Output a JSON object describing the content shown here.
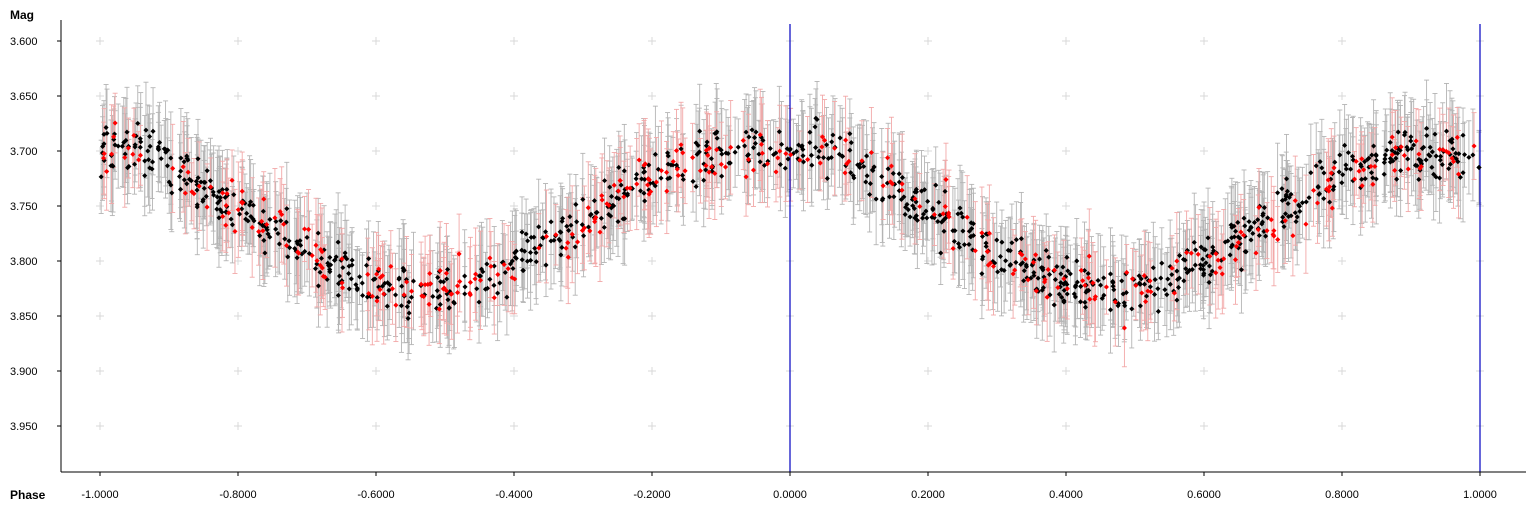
{
  "chart_data": {
    "type": "scatter",
    "xlabel": "Phase",
    "ylabel": "Mag",
    "xlim": [
      -1.0,
      1.0
    ],
    "ylim": [
      3.59,
      3.99
    ],
    "y_inverted": true,
    "grid": "light-gray plus markers at tick intersections",
    "x_ticks": [
      "-1.0000",
      "-0.8000",
      "-0.6000",
      "-0.4000",
      "-0.2000",
      "0.0000",
      "0.2000",
      "0.4000",
      "0.6000",
      "0.8000",
      "1.0000"
    ],
    "x_tick_values": [
      -1.0,
      -0.8,
      -0.6,
      -0.4,
      -0.2,
      0.0,
      0.2,
      0.4,
      0.6,
      0.8,
      1.0
    ],
    "y_ticks": [
      "3.600",
      "3.650",
      "3.700",
      "3.750",
      "3.800",
      "3.850",
      "3.900",
      "3.950"
    ],
    "y_tick_values": [
      3.6,
      3.65,
      3.7,
      3.75,
      3.8,
      3.85,
      3.9,
      3.95
    ],
    "phase_markers": [
      0.0,
      1.0
    ],
    "colors": {
      "series_black": "#000000",
      "series_red": "#ff0000",
      "errorbar_black": "#b4b4b4",
      "errorbar_red": "#f2a8a8",
      "marker_line": "#0000c0",
      "grid_plus": "#d8d8d8",
      "axis": "#000000"
    },
    "series": [
      {
        "color": "black",
        "points_per_phase_bin": "many individual observations; values below are representative samples read from the plot",
        "x": [
          -1.0,
          -0.98,
          -0.96,
          -0.94,
          -0.92,
          -0.9,
          -0.88,
          -0.86,
          -0.84,
          -0.82,
          -0.8,
          -0.78,
          -0.76,
          -0.74,
          -0.72,
          -0.7,
          -0.68,
          -0.66,
          -0.64,
          -0.62,
          -0.6,
          -0.58,
          -0.56,
          -0.54,
          -0.52,
          -0.5,
          -0.48,
          -0.46,
          -0.44,
          -0.42,
          -0.4,
          -0.38,
          -0.36,
          -0.34,
          -0.32,
          -0.3,
          -0.28,
          -0.26,
          -0.24,
          -0.22,
          -0.2,
          -0.18,
          -0.16,
          -0.14,
          -0.12,
          -0.1,
          -0.08,
          -0.06,
          -0.04,
          -0.02,
          0.0,
          0.02,
          0.04,
          0.06,
          0.08,
          0.1,
          0.12,
          0.14,
          0.16,
          0.18,
          0.2,
          0.22,
          0.24,
          0.26,
          0.28,
          0.3,
          0.32,
          0.34,
          0.36,
          0.38,
          0.4,
          0.42,
          0.44,
          0.46,
          0.48,
          0.5,
          0.52,
          0.54,
          0.56,
          0.58,
          0.6,
          0.62,
          0.64,
          0.66,
          0.68,
          0.7,
          0.72,
          0.74,
          0.76,
          0.78,
          0.8,
          0.82,
          0.84,
          0.86,
          0.88,
          0.9,
          0.92,
          0.94,
          0.96,
          0.98,
          1.0
        ],
        "y": [
          3.705,
          3.7,
          3.695,
          3.698,
          3.705,
          3.712,
          3.722,
          3.73,
          3.738,
          3.745,
          3.752,
          3.76,
          3.768,
          3.776,
          3.785,
          3.793,
          3.8,
          3.807,
          3.813,
          3.818,
          3.822,
          3.825,
          3.827,
          3.828,
          3.828,
          3.826,
          3.823,
          3.819,
          3.814,
          3.808,
          3.801,
          3.794,
          3.786,
          3.778,
          3.77,
          3.762,
          3.753,
          3.745,
          3.737,
          3.729,
          3.722,
          3.716,
          3.711,
          3.707,
          3.704,
          3.702,
          3.701,
          3.701,
          3.702,
          3.703,
          3.705,
          3.7,
          3.695,
          3.698,
          3.705,
          3.712,
          3.722,
          3.73,
          3.738,
          3.745,
          3.752,
          3.76,
          3.768,
          3.776,
          3.785,
          3.793,
          3.8,
          3.807,
          3.813,
          3.818,
          3.822,
          3.825,
          3.827,
          3.828,
          3.828,
          3.826,
          3.823,
          3.819,
          3.814,
          3.808,
          3.801,
          3.794,
          3.786,
          3.778,
          3.77,
          3.762,
          3.753,
          3.745,
          3.737,
          3.729,
          3.722,
          3.716,
          3.711,
          3.707,
          3.704,
          3.702,
          3.701,
          3.701,
          3.702,
          3.703,
          3.705
        ],
        "scatter_spread_mag": 0.045,
        "error_mag": 0.035
      },
      {
        "color": "red",
        "x": [
          -1.0,
          -0.95,
          -0.9,
          -0.85,
          -0.8,
          -0.75,
          -0.7,
          -0.65,
          -0.6,
          -0.55,
          -0.5,
          -0.45,
          -0.4,
          -0.35,
          -0.3,
          -0.25,
          -0.2,
          -0.15,
          -0.1,
          -0.05,
          0.0,
          0.05,
          0.1,
          0.15,
          0.2,
          0.25,
          0.3,
          0.35,
          0.4,
          0.45,
          0.5,
          0.55,
          0.6,
          0.65,
          0.7,
          0.75,
          0.8,
          0.85,
          0.9,
          0.95,
          1.0
        ],
        "y": [
          3.705,
          3.697,
          3.712,
          3.738,
          3.752,
          3.768,
          3.793,
          3.807,
          3.822,
          3.827,
          3.826,
          3.814,
          3.801,
          3.786,
          3.77,
          3.745,
          3.722,
          3.711,
          3.702,
          3.701,
          3.705,
          3.697,
          3.712,
          3.738,
          3.752,
          3.768,
          3.793,
          3.807,
          3.822,
          3.827,
          3.826,
          3.814,
          3.801,
          3.786,
          3.77,
          3.745,
          3.722,
          3.711,
          3.702,
          3.701,
          3.705
        ],
        "scatter_spread_mag": 0.045,
        "error_mag": 0.035
      }
    ]
  }
}
